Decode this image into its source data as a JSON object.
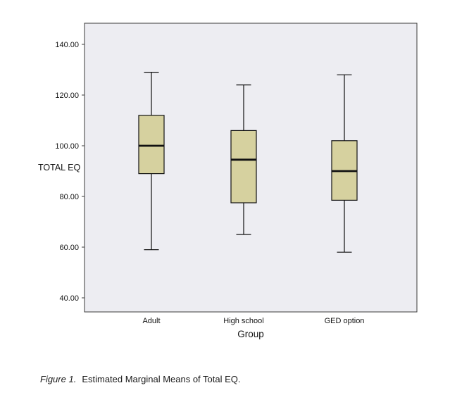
{
  "caption": {
    "figure_label": "Figure 1.",
    "text": "Estimated Marginal Means of Total EQ."
  },
  "chart_data": {
    "type": "boxplot",
    "title": "",
    "xlabel": "Group",
    "ylabel": "TOTAL EQ",
    "ylim": [
      40,
      140
    ],
    "yticks": [
      40,
      60,
      80,
      100,
      120,
      140
    ],
    "ytick_labels": [
      "40.00",
      "60.00",
      "80.00",
      "100.00",
      "120.00",
      "140.00"
    ],
    "categories": [
      "Adult",
      "High school",
      "GED option"
    ],
    "series": [
      {
        "name": "Adult",
        "whisker_low": 59,
        "q1": 89,
        "median": 100,
        "q3": 112,
        "whisker_high": 129
      },
      {
        "name": "High school",
        "whisker_low": 65,
        "q1": 77.5,
        "median": 94.5,
        "q3": 106,
        "whisker_high": 124
      },
      {
        "name": "GED option",
        "whisker_low": 58,
        "q1": 78.5,
        "median": 90,
        "q3": 102,
        "whisker_high": 128
      }
    ],
    "legend": "none",
    "grid": "off",
    "colors": {
      "box_fill": "#d6d19f",
      "box_stroke": "#111111",
      "median": "#111111",
      "whisker": "#111111",
      "plot_bg": "#ededf2",
      "plot_border": "#3a3a3a",
      "text": "#111111"
    }
  }
}
